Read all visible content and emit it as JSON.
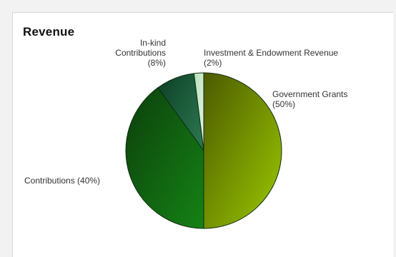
{
  "chart_data": {
    "type": "pie",
    "title": "Revenue",
    "slices": [
      {
        "label": "Government Grants",
        "value": 50,
        "label_lines": [
          "Government Grants",
          "(50%)"
        ],
        "colors": [
          "#4c5a00",
          "#9cc900"
        ]
      },
      {
        "label": "Contributions",
        "value": 40,
        "label_lines": [
          "Contributions (40%)"
        ],
        "colors": [
          "#0d3f0d",
          "#158215"
        ]
      },
      {
        "label": "In-kind Contributions",
        "value": 8,
        "label_lines": [
          "In-kind",
          "Contributions",
          "(8%)"
        ],
        "colors": [
          "#0d3f26",
          "#2d7a52"
        ]
      },
      {
        "label": "Investment & Endowment Revenue",
        "value": 2,
        "label_lines": [
          "Investment & Endowment Revenue",
          "(2%)"
        ],
        "colors": [
          "#b8dfb8",
          "#e6f6e6"
        ]
      }
    ]
  }
}
